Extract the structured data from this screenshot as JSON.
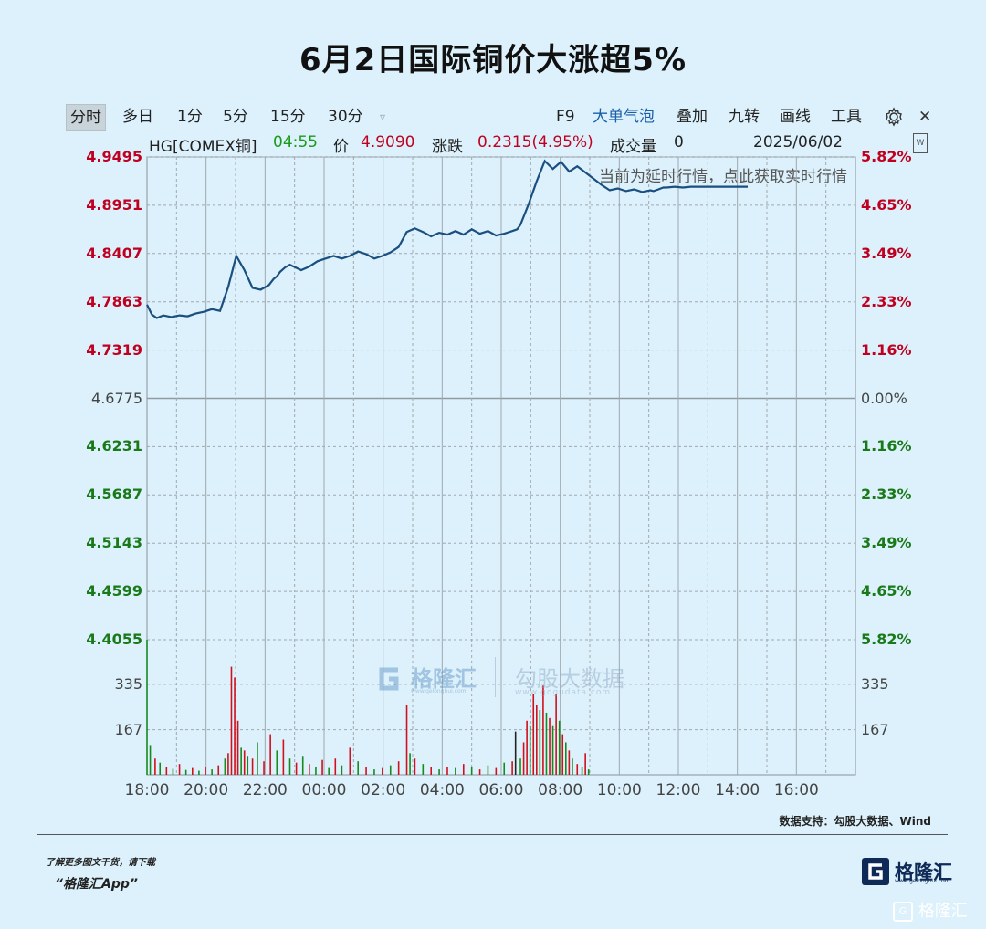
{
  "page": {
    "title": "6月2日国际铜价大涨超5%",
    "notice": "当前为延时行情，点此获取实时行情",
    "source": "数据支持：勾股大数据、Wind",
    "promo_line1": "了解更多图文干货，请下载",
    "promo_line2": "“格隆汇App”",
    "brand_name": "格隆汇",
    "brand_url": "www.gelonghui.com",
    "watermark_text": "格隆汇",
    "center_wm_brand": "格隆汇",
    "center_wm_brand_url": "www.gelonghui.com",
    "center_wm_partner": "勾股大数据",
    "center_wm_partner_url": "www.gogudata.com"
  },
  "toolbar": {
    "left_tabs": [
      "分时",
      "多日",
      "1分",
      "5分",
      "15分",
      "30分"
    ],
    "right_tabs": [
      "F9",
      "大单气泡",
      "叠加",
      "九转",
      "画线",
      "工具"
    ],
    "active_tab": "分时",
    "highlight_tab": "大单气泡",
    "icons": [
      "dropdown-icon",
      "gear-icon",
      "close-icon",
      "settings-panel-icon"
    ]
  },
  "info": {
    "symbol": "HG[COMEX铜]",
    "time": "04:55",
    "price_label": "价",
    "price": "4.9090",
    "change_label": "涨跌",
    "change": "0.2315(4.95%)",
    "volume_label": "成交量",
    "volume": "0",
    "date": "2025/06/02"
  },
  "colors": {
    "up": "#c00020",
    "down": "#1a7a1a",
    "line": "#1a4f80",
    "grid": "#a0a8ae",
    "background": "#dcf1fb"
  },
  "chart_data": {
    "type": "line",
    "title": "",
    "xlabel": "",
    "ylabel": "",
    "base_price": 4.6775,
    "x_ticks": [
      "18:00",
      "20:00",
      "22:00",
      "00:00",
      "02:00",
      "04:00",
      "06:00",
      "08:00",
      "10:00",
      "12:00",
      "14:00",
      "16:00"
    ],
    "y_ticks_left": [
      "4.9495",
      "4.8951",
      "4.8407",
      "4.7863",
      "4.7319",
      "4.6775",
      "4.6231",
      "4.5687",
      "4.5143",
      "4.4599",
      "4.4055"
    ],
    "y_ticks_right": [
      "5.82%",
      "4.65%",
      "3.49%",
      "2.33%",
      "1.16%",
      "0.00%",
      "1.16%",
      "2.33%",
      "3.49%",
      "4.65%",
      "5.82%"
    ],
    "ylim": [
      4.4055,
      4.9495
    ],
    "volume_ticks": [
      "335",
      "167"
    ],
    "volume_ylim": [
      0,
      500
    ],
    "series": [
      {
        "x": [
          0,
          3,
          6,
          10,
          15,
          20,
          25,
          30,
          35,
          40,
          45,
          50,
          55,
          60,
          65,
          70,
          75,
          78,
          80,
          82,
          85,
          88,
          95,
          100,
          105,
          110,
          115,
          120,
          125,
          130,
          135,
          140,
          145,
          150,
          155,
          160,
          165,
          170,
          175,
          180,
          185,
          190,
          195,
          200,
          205,
          210,
          215,
          220,
          225,
          228,
          230,
          235,
          240,
          245,
          250,
          255,
          260,
          265,
          270,
          275,
          280,
          285,
          290,
          295,
          300,
          305,
          310,
          312,
          315,
          318,
          320,
          325,
          330,
          335,
          340,
          345,
          350,
          355,
          360,
          365,
          370
        ],
        "y": [
          4.783,
          4.772,
          4.768,
          4.771,
          4.769,
          4.771,
          4.77,
          4.773,
          4.775,
          4.778,
          4.776,
          4.803,
          4.838,
          4.822,
          4.802,
          4.8,
          4.805,
          4.812,
          4.815,
          4.82,
          4.825,
          4.828,
          4.822,
          4.826,
          4.832,
          4.835,
          4.838,
          4.835,
          4.838,
          4.843,
          4.84,
          4.835,
          4.838,
          4.842,
          4.848,
          4.865,
          4.869,
          4.865,
          4.86,
          4.864,
          4.862,
          4.866,
          4.862,
          4.868,
          4.863,
          4.866,
          4.861,
          4.863,
          4.866,
          4.868,
          4.873,
          4.896,
          4.922,
          4.945,
          4.936,
          4.944,
          4.933,
          4.939,
          4.932,
          4.925,
          4.918,
          4.912,
          4.914,
          4.911,
          4.913,
          4.91,
          4.912,
          4.911,
          4.913,
          4.915,
          4.915,
          4.916,
          4.915,
          4.916,
          4.916,
          4.916,
          4.916,
          4.916,
          4.916,
          4.916,
          4.916
        ]
      }
    ],
    "volume_bars": [
      {
        "x": 0,
        "v": 500,
        "c": "d"
      },
      {
        "x": 2,
        "v": 110,
        "c": "d"
      },
      {
        "x": 5,
        "v": 60,
        "c": "u"
      },
      {
        "x": 8,
        "v": 45,
        "c": "d"
      },
      {
        "x": 12,
        "v": 30,
        "c": "u"
      },
      {
        "x": 16,
        "v": 22,
        "c": "d"
      },
      {
        "x": 20,
        "v": 40,
        "c": "u"
      },
      {
        "x": 24,
        "v": 18,
        "c": "d"
      },
      {
        "x": 28,
        "v": 25,
        "c": "u"
      },
      {
        "x": 32,
        "v": 15,
        "c": "d"
      },
      {
        "x": 36,
        "v": 28,
        "c": "u"
      },
      {
        "x": 40,
        "v": 20,
        "c": "d"
      },
      {
        "x": 44,
        "v": 35,
        "c": "u"
      },
      {
        "x": 48,
        "v": 60,
        "c": "d"
      },
      {
        "x": 50,
        "v": 80,
        "c": "u"
      },
      {
        "x": 52,
        "v": 400,
        "c": "u"
      },
      {
        "x": 54,
        "v": 360,
        "c": "u"
      },
      {
        "x": 56,
        "v": 200,
        "c": "u"
      },
      {
        "x": 58,
        "v": 100,
        "c": "d"
      },
      {
        "x": 60,
        "v": 90,
        "c": "u"
      },
      {
        "x": 62,
        "v": 70,
        "c": "d"
      },
      {
        "x": 65,
        "v": 60,
        "c": "u"
      },
      {
        "x": 68,
        "v": 120,
        "c": "d"
      },
      {
        "x": 72,
        "v": 50,
        "c": "u"
      },
      {
        "x": 76,
        "v": 150,
        "c": "u"
      },
      {
        "x": 80,
        "v": 90,
        "c": "d"
      },
      {
        "x": 84,
        "v": 130,
        "c": "u"
      },
      {
        "x": 88,
        "v": 60,
        "c": "d"
      },
      {
        "x": 92,
        "v": 45,
        "c": "u"
      },
      {
        "x": 96,
        "v": 70,
        "c": "d"
      },
      {
        "x": 100,
        "v": 40,
        "c": "u"
      },
      {
        "x": 104,
        "v": 30,
        "c": "d"
      },
      {
        "x": 108,
        "v": 55,
        "c": "u"
      },
      {
        "x": 112,
        "v": 25,
        "c": "d"
      },
      {
        "x": 116,
        "v": 60,
        "c": "u"
      },
      {
        "x": 120,
        "v": 35,
        "c": "d"
      },
      {
        "x": 125,
        "v": 100,
        "c": "u"
      },
      {
        "x": 130,
        "v": 50,
        "c": "d"
      },
      {
        "x": 135,
        "v": 30,
        "c": "u"
      },
      {
        "x": 140,
        "v": 20,
        "c": "d"
      },
      {
        "x": 145,
        "v": 25,
        "c": "u"
      },
      {
        "x": 150,
        "v": 35,
        "c": "d"
      },
      {
        "x": 155,
        "v": 50,
        "c": "u"
      },
      {
        "x": 160,
        "v": 260,
        "c": "u"
      },
      {
        "x": 162,
        "v": 80,
        "c": "d"
      },
      {
        "x": 165,
        "v": 60,
        "c": "u"
      },
      {
        "x": 170,
        "v": 40,
        "c": "d"
      },
      {
        "x": 175,
        "v": 30,
        "c": "u"
      },
      {
        "x": 180,
        "v": 20,
        "c": "d"
      },
      {
        "x": 185,
        "v": 30,
        "c": "u"
      },
      {
        "x": 190,
        "v": 25,
        "c": "d"
      },
      {
        "x": 195,
        "v": 40,
        "c": "u"
      },
      {
        "x": 200,
        "v": 30,
        "c": "d"
      },
      {
        "x": 205,
        "v": 20,
        "c": "u"
      },
      {
        "x": 210,
        "v": 35,
        "c": "d"
      },
      {
        "x": 215,
        "v": 25,
        "c": "u"
      },
      {
        "x": 220,
        "v": 45,
        "c": "d"
      },
      {
        "x": 225,
        "v": 50,
        "c": "u"
      },
      {
        "x": 227,
        "v": 160,
        "c": "k"
      },
      {
        "x": 230,
        "v": 60,
        "c": "d"
      },
      {
        "x": 232,
        "v": 120,
        "c": "u"
      },
      {
        "x": 234,
        "v": 200,
        "c": "u"
      },
      {
        "x": 236,
        "v": 180,
        "c": "d"
      },
      {
        "x": 238,
        "v": 300,
        "c": "u"
      },
      {
        "x": 240,
        "v": 260,
        "c": "u"
      },
      {
        "x": 242,
        "v": 240,
        "c": "d"
      },
      {
        "x": 244,
        "v": 330,
        "c": "u"
      },
      {
        "x": 246,
        "v": 230,
        "c": "d"
      },
      {
        "x": 248,
        "v": 210,
        "c": "u"
      },
      {
        "x": 250,
        "v": 180,
        "c": "d"
      },
      {
        "x": 252,
        "v": 300,
        "c": "u"
      },
      {
        "x": 254,
        "v": 200,
        "c": "d"
      },
      {
        "x": 256,
        "v": 150,
        "c": "u"
      },
      {
        "x": 258,
        "v": 120,
        "c": "d"
      },
      {
        "x": 260,
        "v": 90,
        "c": "u"
      },
      {
        "x": 262,
        "v": 60,
        "c": "d"
      },
      {
        "x": 265,
        "v": 40,
        "c": "u"
      },
      {
        "x": 268,
        "v": 30,
        "c": "d"
      },
      {
        "x": 270,
        "v": 80,
        "c": "u"
      },
      {
        "x": 272,
        "v": 20,
        "c": "d"
      }
    ]
  }
}
